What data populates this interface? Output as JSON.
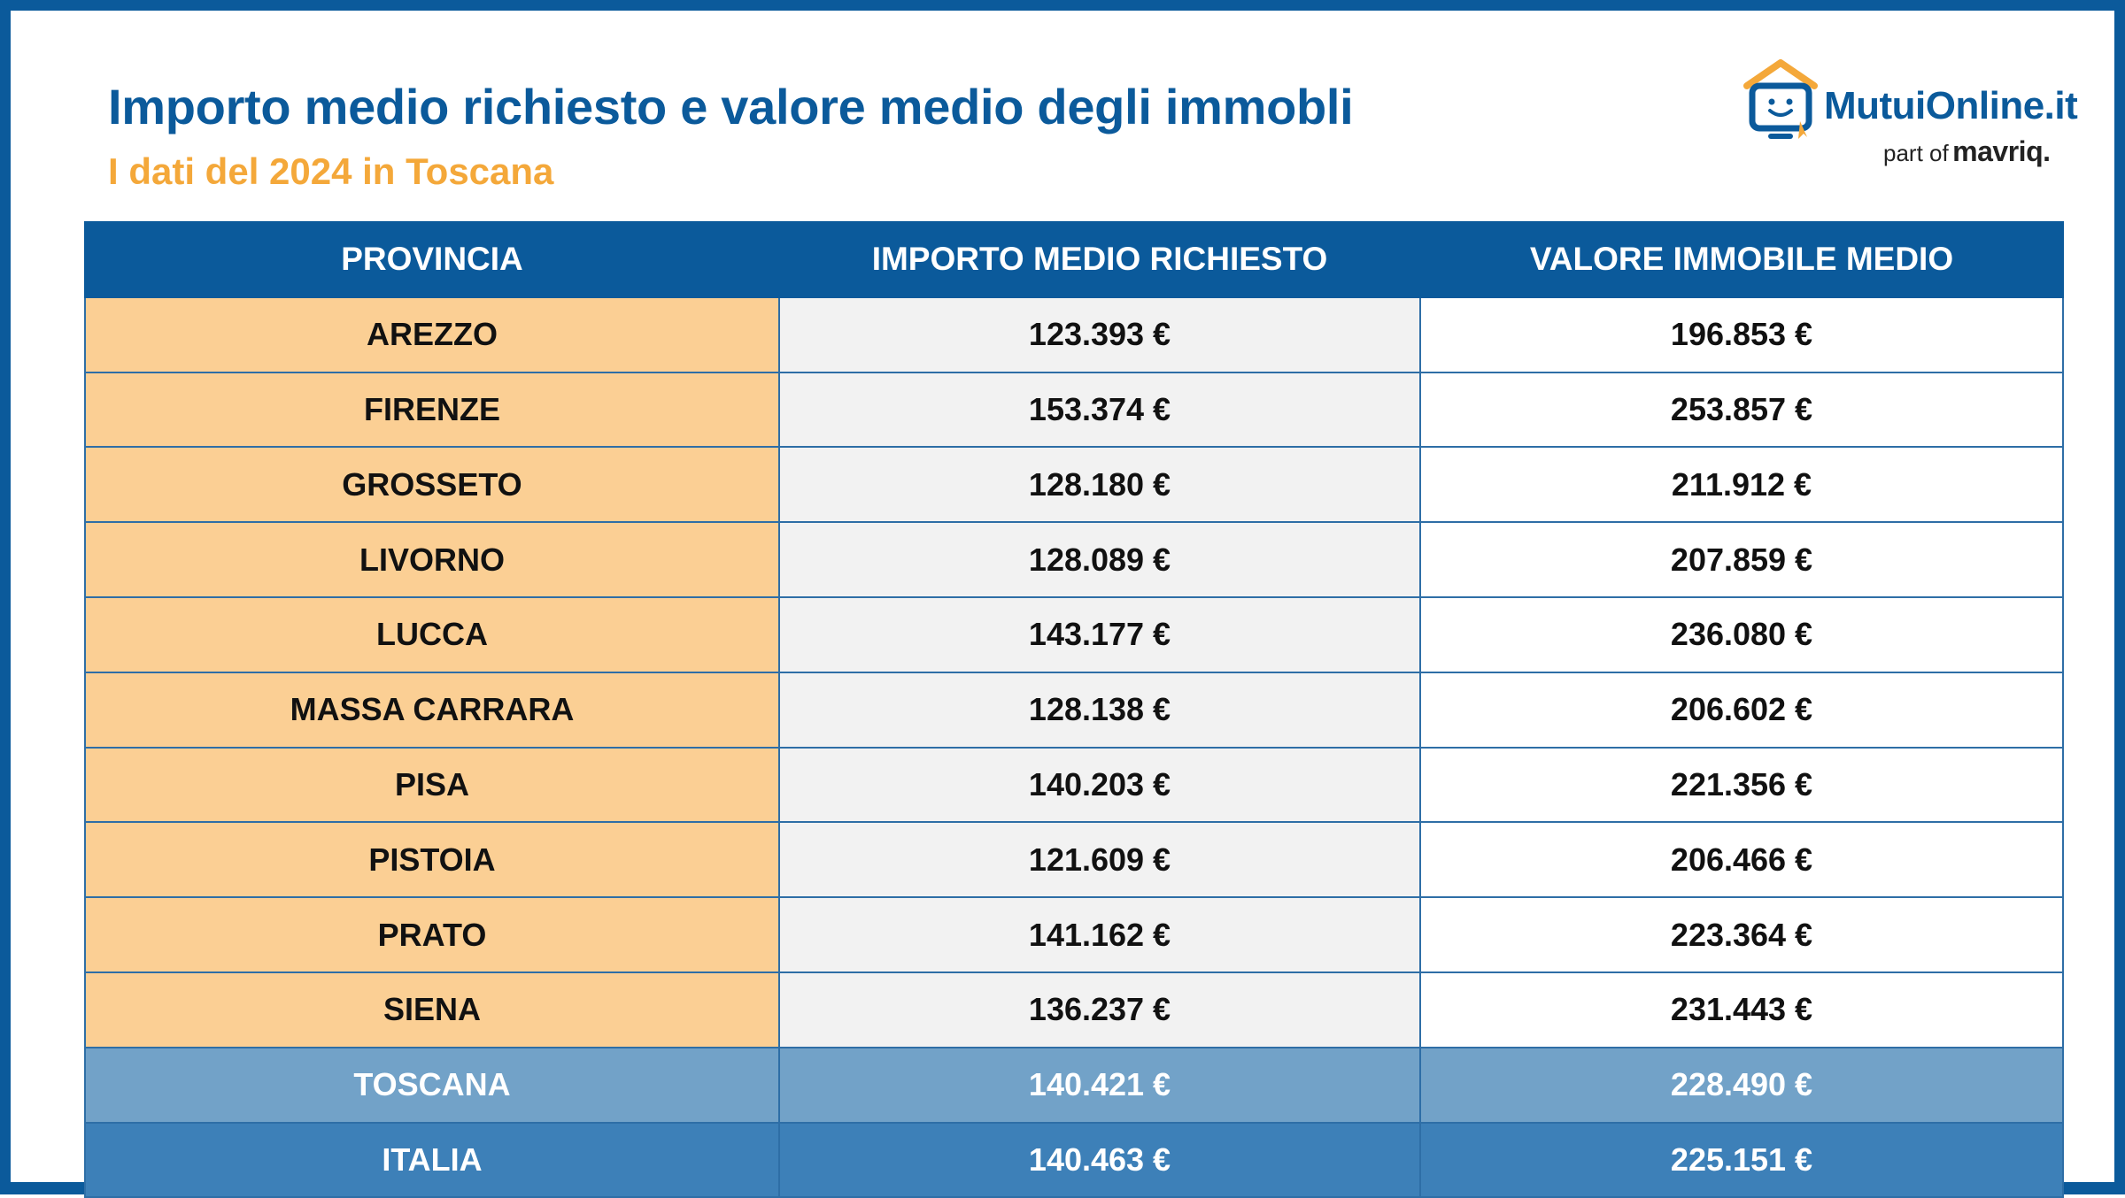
{
  "header": {
    "title": "Importo medio richiesto e valore medio degli immobli",
    "subtitle": "I dati del 2024 in Toscana"
  },
  "logo": {
    "name": "MutuiOnline.it",
    "part_of": "part of",
    "brand": "mavriq.",
    "icon": "house-monitor-icon"
  },
  "colors": {
    "frame": "#0b5a9b",
    "title": "#0b5a9b",
    "subtitle": "#f4a83a",
    "province_cell": "#fbcf94",
    "toscana_row": "#72a2c8",
    "italia_row": "#3d80b8"
  },
  "table": {
    "headers": [
      "PROVINCIA",
      "IMPORTO MEDIO RICHIESTO",
      "VALORE IMMOBILE MEDIO"
    ],
    "rows": [
      {
        "provincia": "AREZZO",
        "importo": "123.393 €",
        "valore": "196.853 €"
      },
      {
        "provincia": "FIRENZE",
        "importo": "153.374 €",
        "valore": "253.857 €"
      },
      {
        "provincia": "GROSSETO",
        "importo": "128.180 €",
        "valore": "211.912 €"
      },
      {
        "provincia": "LIVORNO",
        "importo": "128.089 €",
        "valore": "207.859 €"
      },
      {
        "provincia": "LUCCA",
        "importo": "143.177 €",
        "valore": "236.080 €"
      },
      {
        "provincia": "MASSA CARRARA",
        "importo": "128.138 €",
        "valore": "206.602 €"
      },
      {
        "provincia": "PISA",
        "importo": "140.203 €",
        "valore": "221.356 €"
      },
      {
        "provincia": "PISTOIA",
        "importo": "121.609 €",
        "valore": "206.466 €"
      },
      {
        "provincia": "PRATO",
        "importo": "141.162 €",
        "valore": "223.364 €"
      },
      {
        "provincia": "SIENA",
        "importo": "136.237 €",
        "valore": "231.443 €"
      }
    ],
    "totals": [
      {
        "provincia": "TOSCANA",
        "importo": "140.421 €",
        "valore": "228.490 €"
      },
      {
        "provincia": "ITALIA",
        "importo": "140.463 €",
        "valore": "225.151 €"
      }
    ]
  }
}
